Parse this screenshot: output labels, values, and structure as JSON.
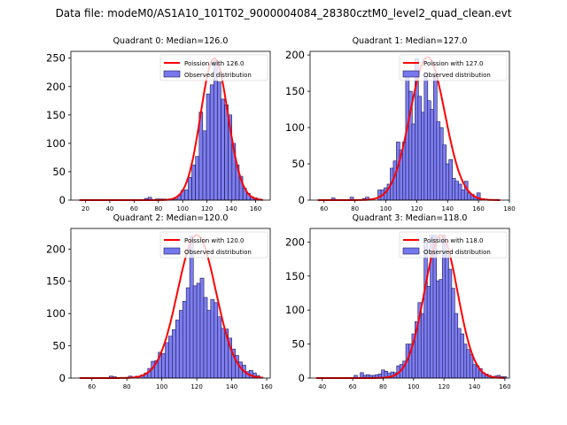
{
  "suptitle": "Data file: modeM0/AS1A10_101T02_9000004084_28380cztM0_level2_quad_clean.evt",
  "colors": {
    "bar_fill": "#7777ee",
    "bar_edge": "#1a1a5a",
    "curve": "#ff0000"
  },
  "chart_data": [
    {
      "type": "bar",
      "title": "Quadrant 0: Median=126.0",
      "legend": [
        "Poission with 126.0",
        "Observed distribution"
      ],
      "legend_position": "top-right",
      "xlim": [
        8,
        172
      ],
      "ylim": [
        0,
        262
      ],
      "xticks": [
        20,
        40,
        60,
        80,
        100,
        120,
        140,
        160
      ],
      "yticks": [
        0,
        50,
        100,
        150,
        200,
        250
      ],
      "bin_width": 2.9,
      "bins": [
        70,
        73,
        76,
        79,
        82,
        85,
        88,
        91,
        94,
        97,
        100,
        103,
        106,
        109,
        112,
        115,
        118,
        121,
        124,
        127,
        130,
        133,
        136,
        139,
        142,
        145,
        148,
        151,
        154,
        157,
        160,
        163
      ],
      "values": [
        3,
        5,
        1,
        2,
        2,
        2,
        1,
        1,
        2,
        8,
        17,
        18,
        40,
        62,
        77,
        155,
        122,
        187,
        203,
        246,
        208,
        178,
        168,
        150,
        100,
        62,
        42,
        21,
        12,
        6,
        4,
        2
      ],
      "poisson_mean": 126.0,
      "poisson_peak": 250,
      "curve_range": [
        15,
        166
      ]
    },
    {
      "type": "bar",
      "title": "Quadrant 1: Median=127.0",
      "legend": [
        "Poission with 127.0",
        "Observed distribution"
      ],
      "legend_position": "top-right",
      "xlim": [
        51,
        180
      ],
      "ylim": [
        0,
        205
      ],
      "xticks": [
        60,
        80,
        100,
        120,
        140,
        160,
        180
      ],
      "yticks": [
        0,
        50,
        100,
        150,
        200
      ],
      "bin_width": 2.3,
      "bins": [
        66,
        78,
        86,
        88,
        96,
        98,
        100,
        102,
        104,
        106,
        108,
        110,
        112,
        114,
        116,
        118,
        120,
        122,
        124,
        126,
        128,
        130,
        132,
        134,
        136,
        138,
        140,
        142,
        144,
        146,
        148,
        150,
        152,
        154,
        156,
        158,
        160,
        162
      ],
      "values": [
        3,
        4,
        2,
        4,
        14,
        14,
        17,
        22,
        44,
        54,
        80,
        69,
        80,
        170,
        150,
        105,
        195,
        143,
        121,
        170,
        137,
        125,
        172,
        108,
        100,
        76,
        50,
        56,
        30,
        26,
        22,
        14,
        26,
        10,
        8,
        4,
        10,
        2
      ],
      "poisson_mean": 127.0,
      "poisson_peak": 197,
      "curve_range": [
        56,
        174
      ]
    },
    {
      "type": "bar",
      "title": "Quadrant 2: Median=120.0",
      "legend": [
        "Poission with 120.0",
        "Observed distribution"
      ],
      "legend_position": "top-right",
      "xlim": [
        48,
        162
      ],
      "ylim": [
        0,
        232
      ],
      "xticks": [
        60,
        80,
        100,
        120,
        140,
        160
      ],
      "yticks": [
        0,
        50,
        100,
        150,
        200
      ],
      "bin_width": 2.1,
      "bins": [
        71,
        73,
        82,
        86,
        89,
        91,
        93,
        95,
        97,
        99,
        101,
        103,
        105,
        107,
        109,
        111,
        113,
        115,
        117,
        119,
        121,
        123,
        125,
        127,
        129,
        131,
        133,
        135,
        137,
        139,
        141,
        143,
        145,
        147,
        149,
        151,
        153,
        155
      ],
      "values": [
        3,
        2,
        3,
        3,
        5,
        8,
        15,
        26,
        27,
        40,
        38,
        55,
        65,
        75,
        90,
        105,
        119,
        140,
        220,
        143,
        147,
        155,
        125,
        105,
        122,
        117,
        95,
        77,
        76,
        62,
        45,
        35,
        25,
        20,
        10,
        12,
        8,
        4
      ],
      "poisson_mean": 120.0,
      "poisson_peak": 222,
      "curve_range": [
        53,
        158
      ]
    },
    {
      "type": "bar",
      "title": "Quadrant 3: Median=118.0",
      "legend": [
        "Poission with 118.0",
        "Observed distribution"
      ],
      "legend_position": "top-right",
      "xlim": [
        32,
        163
      ],
      "ylim": [
        0,
        220
      ],
      "xticks": [
        40,
        60,
        80,
        100,
        120,
        140,
        160
      ],
      "yticks": [
        0,
        50,
        100,
        150,
        200
      ],
      "bin_width": 2.2,
      "bins": [
        62,
        66,
        68,
        70,
        72,
        74,
        76,
        78,
        80,
        82,
        84,
        86,
        88,
        90,
        92,
        94,
        96,
        98,
        100,
        102,
        104,
        106,
        108,
        110,
        112,
        114,
        116,
        118,
        120,
        122,
        124,
        126,
        128,
        130,
        132,
        134,
        136,
        138,
        140,
        142,
        144,
        146,
        148,
        150,
        152,
        154,
        156,
        158,
        160
      ],
      "values": [
        4,
        8,
        4,
        5,
        4,
        4,
        5,
        6,
        12,
        10,
        7,
        9,
        8,
        18,
        20,
        25,
        50,
        50,
        65,
        83,
        111,
        95,
        200,
        135,
        210,
        210,
        143,
        145,
        210,
        180,
        160,
        132,
        95,
        73,
        65,
        50,
        42,
        35,
        20,
        18,
        14,
        8,
        6,
        4,
        2,
        3,
        4,
        2,
        2
      ],
      "poisson_mean": 118.0,
      "poisson_peak": 210,
      "curve_range": [
        36,
        160
      ]
    }
  ]
}
